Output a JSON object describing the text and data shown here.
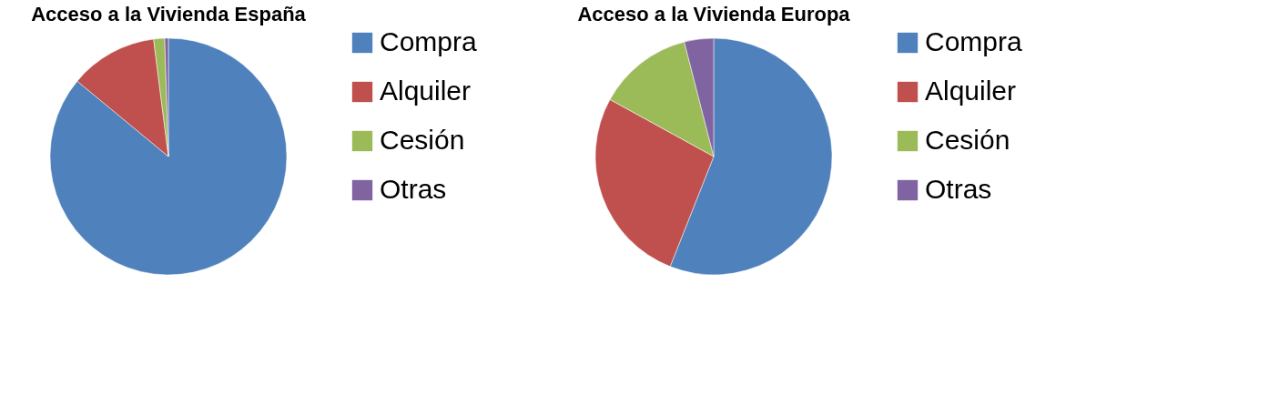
{
  "chart_data": [
    {
      "type": "pie",
      "title": "Acceso a la Vivienda España",
      "categories": [
        "Compra",
        "Alquiler",
        "Cesión",
        "Otras"
      ],
      "values": [
        86,
        12,
        1.5,
        0.5
      ],
      "colors": [
        "#4f81bd",
        "#c0504d",
        "#9bbb59",
        "#8064a2"
      ],
      "legend": "right"
    },
    {
      "type": "pie",
      "title": "Acceso a la Vivienda Europa",
      "categories": [
        "Compra",
        "Alquiler",
        "Cesión",
        "Otras"
      ],
      "values": [
        56,
        27,
        13,
        4
      ],
      "colors": [
        "#4f81bd",
        "#c0504d",
        "#9bbb59",
        "#8064a2"
      ],
      "legend": "right"
    }
  ]
}
